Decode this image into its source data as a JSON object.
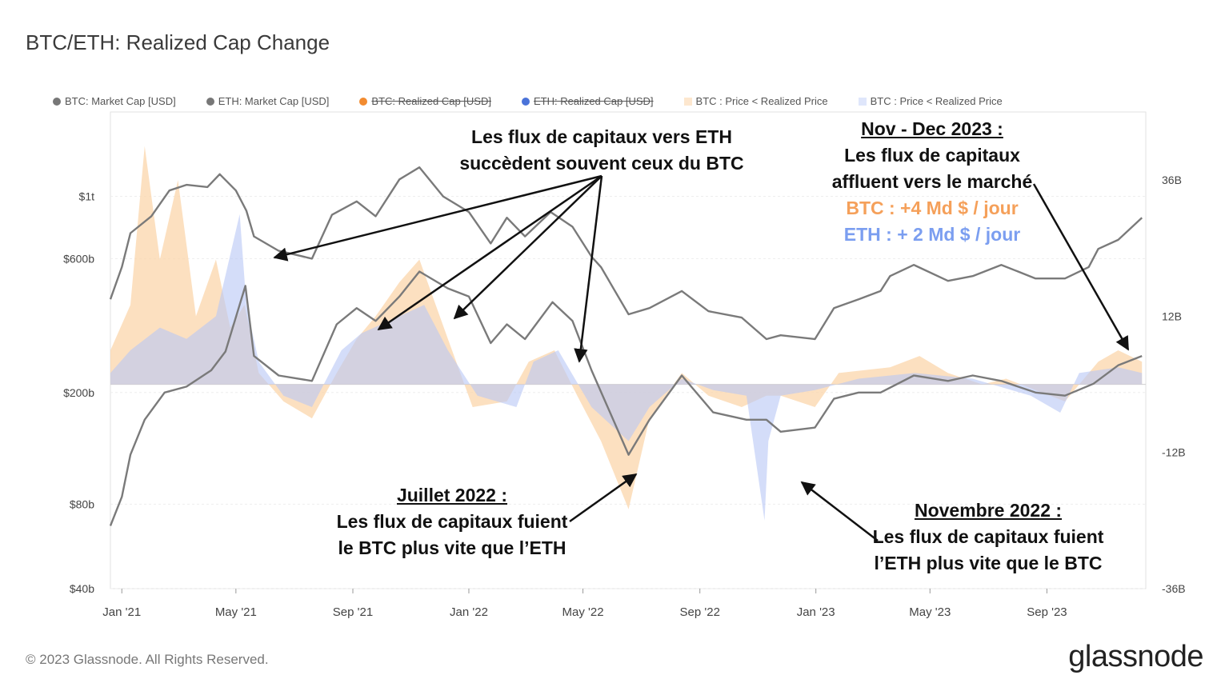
{
  "title": "BTC/ETH: Realized Cap Change",
  "legend": [
    {
      "label": "BTC: Market Cap [USD]",
      "color": "#777777",
      "shape": "dot",
      "struck": false
    },
    {
      "label": "ETH: Market Cap [USD]",
      "color": "#777777",
      "shape": "dot",
      "struck": false
    },
    {
      "label": "BTC: Realized Cap [USD]",
      "color": "#f28b30",
      "shape": "dot",
      "struck": true
    },
    {
      "label": "ETH: Realized Cap [USD]",
      "color": "#4a73d9",
      "shape": "dot",
      "struck": true
    },
    {
      "label": "BTC : Price < Realized Price",
      "color": "#fde7cf",
      "shape": "square",
      "struck": false
    },
    {
      "label": "BTC : Price < Realized Price",
      "color": "#dfe6fb",
      "shape": "square",
      "struck": false
    }
  ],
  "annotations": {
    "flux_line1": "Les flux de capitaux vers ETH",
    "flux_line2": "succèdent souvent ceux du BTC",
    "novdec_title": "Nov - Dec 2023 :",
    "novdec_line1": "Les flux de capitaux",
    "novdec_line2": "affluent vers le marché",
    "novdec_btc": "BTC : +4 Md $ / jour",
    "novdec_eth": "ETH : + 2 Md $ / jour",
    "juillet_title": "Juillet 2022 :",
    "juillet_line1": "Les flux de capitaux fuient",
    "juillet_line2": "le BTC plus vite que l’ETH",
    "nov22_title": "Novembre 2022 :",
    "nov22_line1": "Les flux de capitaux fuient",
    "nov22_line2": "l’ETH plus vite que le BTC"
  },
  "footer": "© 2023 Glassnode. All Rights Reserved.",
  "brand": "glassnode",
  "chart_data": {
    "type": "area",
    "title": "BTC/ETH: Realized Cap Change",
    "x_ticks": [
      "Jan '21",
      "May '21",
      "Sep '21",
      "Jan '22",
      "May '22",
      "Sep '22",
      "Jan '23",
      "May '23",
      "Sep '23"
    ],
    "x_range": [
      "2020-12-20",
      "2023-12-14"
    ],
    "left_axis": {
      "scale": "log",
      "ticks": [
        "$1t",
        "$600b",
        "$200b",
        "$80b",
        "$40b"
      ],
      "tick_values": [
        1000,
        600,
        200,
        80,
        40
      ],
      "unit": "billion USD",
      "range": [
        40,
        2000
      ]
    },
    "right_axis": {
      "scale": "linear",
      "ticks": [
        "36B",
        "12B",
        "-12B",
        "-36B"
      ],
      "tick_values": [
        36,
        12,
        -12,
        -36
      ],
      "unit": "billion USD per day",
      "range": [
        -36,
        48
      ]
    },
    "grid": true,
    "legend_position": "top",
    "colors": {
      "market_cap_line": "#7a7a7a",
      "btc_change": "#fbd5ab",
      "eth_change": "#b7c6f5",
      "overlap": "#d8c8e0"
    },
    "series": [
      {
        "name": "BTC: Market Cap [USD]",
        "axis": "left",
        "x": [
          "2020-12-20",
          "2021-01-01",
          "2021-01-10",
          "2021-02-01",
          "2021-02-20",
          "2021-03-10",
          "2021-04-01",
          "2021-04-14",
          "2021-05-01",
          "2021-05-12",
          "2021-05-20",
          "2021-06-15",
          "2021-07-20",
          "2021-08-10",
          "2021-09-05",
          "2021-09-25",
          "2021-10-20",
          "2021-11-10",
          "2021-12-05",
          "2022-01-01",
          "2022-01-24",
          "2022-02-10",
          "2022-03-01",
          "2022-03-28",
          "2022-04-20",
          "2022-05-10",
          "2022-05-20",
          "2022-06-18",
          "2022-07-10",
          "2022-08-13",
          "2022-09-10",
          "2022-10-15",
          "2022-11-10",
          "2022-11-25",
          "2022-12-31",
          "2023-01-20",
          "2023-02-15",
          "2023-03-10",
          "2023-03-20",
          "2023-04-14",
          "2023-05-20",
          "2023-06-15",
          "2023-07-15",
          "2023-08-20",
          "2023-09-20",
          "2023-10-15",
          "2023-10-25",
          "2023-11-15",
          "2023-12-10"
        ],
        "y": [
          430,
          560,
          740,
          850,
          1050,
          1100,
          1080,
          1200,
          1050,
          890,
          720,
          640,
          600,
          860,
          960,
          850,
          1150,
          1270,
          1000,
          880,
          680,
          840,
          720,
          880,
          780,
          610,
          560,
          380,
          400,
          460,
          390,
          370,
          310,
          320,
          310,
          400,
          430,
          460,
          520,
          570,
          500,
          520,
          570,
          510,
          510,
          560,
          650,
          700,
          840
        ]
      },
      {
        "name": "ETH: Market Cap [USD]",
        "axis": "left",
        "x": [
          "2020-12-20",
          "2021-01-01",
          "2021-01-10",
          "2021-01-25",
          "2021-02-15",
          "2021-03-10",
          "2021-04-05",
          "2021-04-20",
          "2021-05-11",
          "2021-05-20",
          "2021-06-15",
          "2021-07-20",
          "2021-08-15",
          "2021-09-05",
          "2021-09-25",
          "2021-10-20",
          "2021-11-10",
          "2021-12-10",
          "2022-01-01",
          "2022-01-24",
          "2022-02-10",
          "2022-03-01",
          "2022-03-30",
          "2022-04-20",
          "2022-05-10",
          "2022-06-18",
          "2022-07-10",
          "2022-08-13",
          "2022-09-15",
          "2022-10-20",
          "2022-11-10",
          "2022-11-25",
          "2022-12-31",
          "2023-01-20",
          "2023-02-15",
          "2023-03-10",
          "2023-04-14",
          "2023-05-20",
          "2023-06-15",
          "2023-07-15",
          "2023-08-20",
          "2023-09-20",
          "2023-10-20",
          "2023-11-15",
          "2023-12-10"
        ],
        "y": [
          67,
          85,
          120,
          160,
          200,
          210,
          240,
          280,
          480,
          270,
          230,
          220,
          350,
          400,
          360,
          440,
          540,
          470,
          440,
          300,
          350,
          310,
          420,
          360,
          240,
          120,
          160,
          230,
          170,
          160,
          160,
          145,
          150,
          190,
          200,
          200,
          230,
          220,
          230,
          220,
          200,
          195,
          215,
          250,
          270
        ]
      },
      {
        "name": "BTC Realized Cap Change",
        "axis": "right",
        "x": [
          "2020-12-20",
          "2021-01-10",
          "2021-01-25",
          "2021-02-10",
          "2021-03-01",
          "2021-03-20",
          "2021-04-10",
          "2021-04-25",
          "2021-05-10",
          "2021-05-25",
          "2021-06-20",
          "2021-07-20",
          "2021-08-15",
          "2021-09-05",
          "2021-09-25",
          "2021-10-20",
          "2021-11-10",
          "2021-12-10",
          "2022-01-05",
          "2022-02-10",
          "2022-03-05",
          "2022-04-01",
          "2022-04-25",
          "2022-05-20",
          "2022-06-18",
          "2022-07-10",
          "2022-08-13",
          "2022-09-10",
          "2022-10-15",
          "2022-11-10",
          "2022-11-25",
          "2022-12-31",
          "2023-01-25",
          "2023-03-20",
          "2023-04-20",
          "2023-05-20",
          "2023-06-25",
          "2023-07-20",
          "2023-08-20",
          "2023-09-20",
          "2023-10-25",
          "2023-11-15",
          "2023-12-10"
        ],
        "y": [
          6,
          14,
          42,
          22,
          36,
          12,
          22,
          10,
          14,
          2,
          -3,
          -6,
          2,
          8,
          12,
          18,
          22,
          8,
          -4,
          -3,
          4,
          6,
          -2,
          -10,
          -22,
          -6,
          2,
          -2,
          -4,
          -2,
          -2,
          -4,
          2,
          3,
          5,
          2,
          0,
          1,
          -1,
          -3,
          4,
          6,
          4
        ]
      },
      {
        "name": "ETH Realized Cap Change",
        "axis": "right",
        "x": [
          "2020-12-20",
          "2021-01-10",
          "2021-02-10",
          "2021-03-10",
          "2021-04-10",
          "2021-05-05",
          "2021-05-12",
          "2021-05-25",
          "2021-06-20",
          "2021-07-20",
          "2021-08-20",
          "2021-09-10",
          "2021-10-20",
          "2021-11-15",
          "2021-12-10",
          "2022-01-10",
          "2022-02-20",
          "2022-03-10",
          "2022-04-05",
          "2022-05-10",
          "2022-06-18",
          "2022-07-10",
          "2022-08-13",
          "2022-09-15",
          "2022-10-20",
          "2022-11-08",
          "2022-11-12",
          "2022-11-25",
          "2022-12-31",
          "2023-02-15",
          "2023-04-15",
          "2023-06-15",
          "2023-08-15",
          "2023-09-15",
          "2023-10-05",
          "2023-11-15",
          "2023-12-10"
        ],
        "y": [
          2,
          6,
          10,
          8,
          12,
          30,
          14,
          4,
          -2,
          -4,
          6,
          9,
          12,
          14,
          6,
          -2,
          -4,
          4,
          6,
          -4,
          -10,
          -4,
          1,
          -1,
          -2,
          -24,
          -10,
          -2,
          -1,
          1,
          2,
          1,
          -2,
          -5,
          2,
          3,
          2
        ]
      }
    ]
  }
}
